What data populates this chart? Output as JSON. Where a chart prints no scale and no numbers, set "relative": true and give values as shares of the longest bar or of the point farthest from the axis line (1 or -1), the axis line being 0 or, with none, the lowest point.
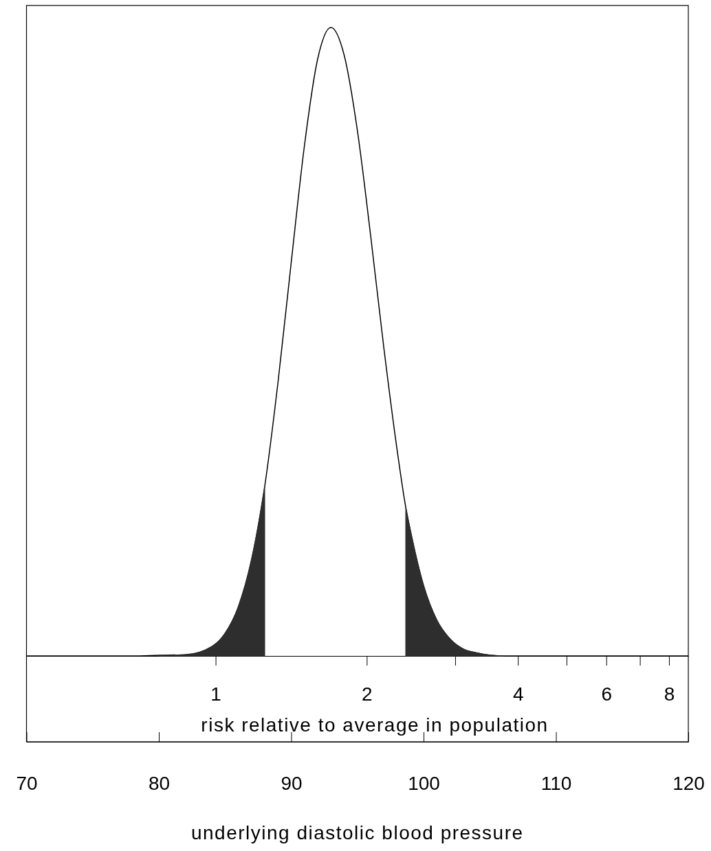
{
  "chart_data": {
    "type": "line",
    "relative": true,
    "xlabel": "underlying diastolic blood pressure",
    "x2label": "risk relative to average in population",
    "log": "x2",
    "xlim": [
      70,
      120
    ],
    "xticks": [
      70,
      80,
      90,
      100,
      110,
      120
    ],
    "x2lim": [
      0.42,
      8.74
    ],
    "x2ticks": [
      1,
      2,
      {
        "value": 3,
        "label": null
      },
      4,
      {
        "value": 5,
        "label": null
      },
      6,
      {
        "value": 7,
        "label": null
      },
      8
    ],
    "series": [
      {
        "type": "line",
        "color": "#000000",
        "x": [
          70,
          78,
          80,
          82,
          84,
          85,
          86,
          87,
          88,
          89,
          90,
          91,
          92,
          93,
          94,
          95,
          96,
          97,
          98,
          98.65,
          99,
          100,
          101,
          102,
          103,
          104,
          106,
          110,
          120
        ],
        "values": [
          0,
          0,
          0.001,
          0.002,
          0.015,
          0.036,
          0.078,
          0.153,
          0.27,
          0.435,
          0.626,
          0.812,
          0.95,
          1,
          0.956,
          0.836,
          0.669,
          0.49,
          0.328,
          0.237,
          0.2,
          0.112,
          0.057,
          0.027,
          0.011,
          0.005,
          0,
          0,
          0
        ]
      },
      {
        "type": "area",
        "color": "#2e2e2e",
        "x": [
          80,
          82,
          84,
          85,
          86,
          87,
          88
        ],
        "values": [
          0.001,
          0.002,
          0.015,
          0.036,
          0.078,
          0.153,
          0.27
        ]
      },
      {
        "type": "area",
        "color": "#2e2e2e",
        "x": [
          98.65,
          99,
          100,
          101,
          102,
          103,
          104,
          106
        ],
        "values": [
          0.237,
          0.2,
          0.112,
          0.057,
          0.027,
          0.011,
          0.005,
          0
        ]
      }
    ]
  }
}
